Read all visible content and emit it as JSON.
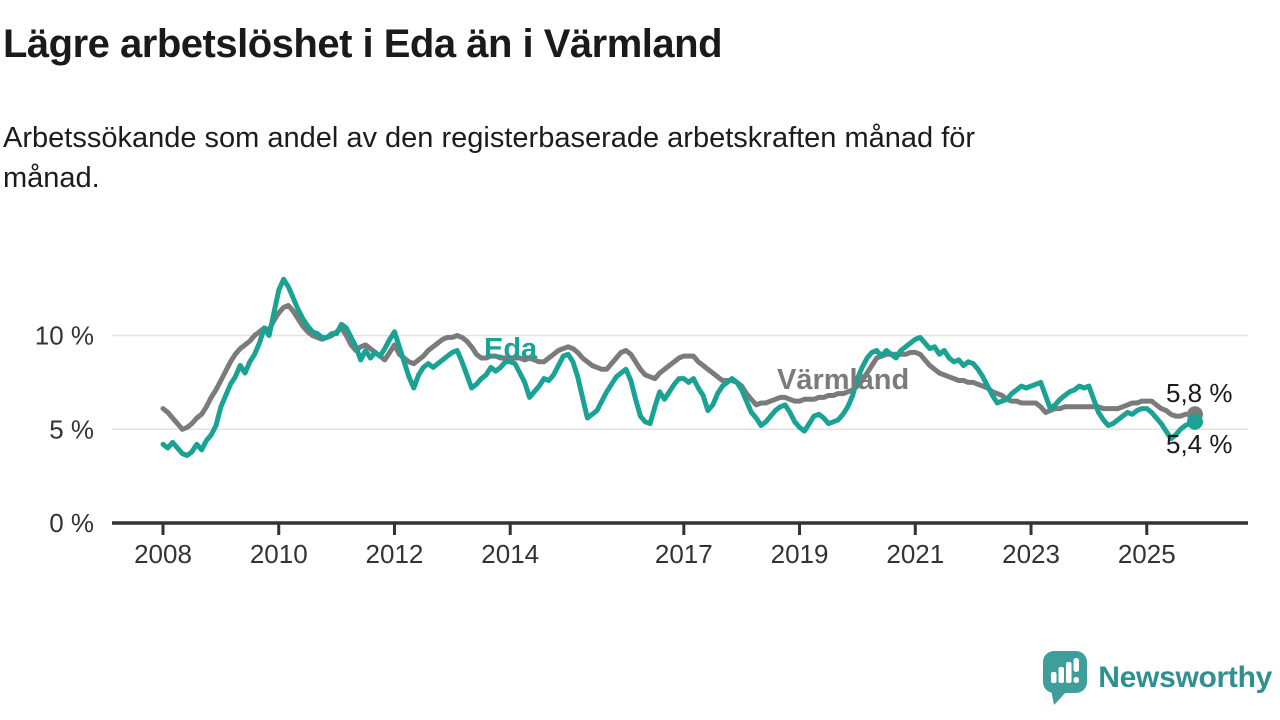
{
  "header": {
    "title": "Lägre arbetslöshet i Eda än i Värmland",
    "subtitle_lines": [
      "Arbetssökande som andel av den registerbaserade arbetskraften månad för",
      "månad."
    ]
  },
  "chart_data": {
    "type": "line",
    "unit": "%",
    "frequency": "monthly",
    "x_start": {
      "year": 2008,
      "month": 1
    },
    "x_end": {
      "year": 2025,
      "month": 11
    },
    "grid": "horizontal-only",
    "legend_position": "inline-labels-on-lines",
    "y_axis": {
      "range": [
        0,
        13.5
      ],
      "ticks": [
        {
          "value": 0,
          "label": "0 %"
        },
        {
          "value": 5,
          "label": "5 %"
        },
        {
          "value": 10,
          "label": "10 %"
        }
      ]
    },
    "x_axis": {
      "tick_years": [
        2008,
        2010,
        2012,
        2014,
        2017,
        2019,
        2021,
        2023,
        2025
      ]
    },
    "series": [
      {
        "name": "Värmland",
        "label": "Värmland",
        "color": "#7b7b7b",
        "end_label": "5,8 %",
        "end_value": 5.8,
        "values": [
          6.1,
          5.9,
          5.6,
          5.3,
          5.0,
          5.1,
          5.3,
          5.6,
          5.8,
          6.2,
          6.7,
          7.1,
          7.6,
          8.1,
          8.6,
          9.0,
          9.3,
          9.5,
          9.7,
          10.0,
          10.2,
          10.4,
          10.3,
          10.8,
          11.2,
          11.5,
          11.6,
          11.3,
          10.9,
          10.5,
          10.2,
          10.0,
          9.9,
          9.8,
          9.9,
          10.0,
          10.2,
          10.4,
          10.0,
          9.5,
          9.2,
          9.4,
          9.5,
          9.3,
          9.1,
          8.9,
          8.7,
          9.1,
          9.5,
          9.0,
          8.8,
          8.6,
          8.5,
          8.7,
          8.9,
          9.2,
          9.4,
          9.6,
          9.8,
          9.9,
          9.9,
          10.0,
          9.9,
          9.7,
          9.4,
          9.0,
          8.8,
          8.8,
          8.9,
          8.9,
          8.8,
          8.8,
          8.8,
          8.8,
          8.8,
          8.7,
          8.8,
          8.7,
          8.6,
          8.6,
          8.8,
          9.0,
          9.2,
          9.3,
          9.4,
          9.3,
          9.1,
          8.8,
          8.6,
          8.4,
          8.3,
          8.2,
          8.2,
          8.5,
          8.8,
          9.1,
          9.2,
          9.0,
          8.6,
          8.2,
          7.9,
          7.8,
          7.7,
          8.0,
          8.2,
          8.4,
          8.6,
          8.8,
          8.9,
          8.9,
          8.9,
          8.6,
          8.4,
          8.2,
          8.0,
          7.8,
          7.6,
          7.6,
          7.6,
          7.5,
          7.3,
          6.9,
          6.6,
          6.3,
          6.4,
          6.4,
          6.5,
          6.6,
          6.7,
          6.7,
          6.6,
          6.5,
          6.5,
          6.6,
          6.6,
          6.6,
          6.7,
          6.7,
          6.8,
          6.8,
          6.9,
          6.9,
          7.0,
          7.1,
          7.3,
          7.6,
          8.0,
          8.4,
          8.8,
          8.9,
          9.0,
          9.0,
          9.0,
          9.0,
          9.0,
          9.1,
          9.1,
          9.0,
          8.7,
          8.4,
          8.2,
          8.0,
          7.9,
          7.8,
          7.7,
          7.6,
          7.6,
          7.5,
          7.5,
          7.4,
          7.3,
          7.2,
          7.0,
          6.9,
          6.8,
          6.6,
          6.5,
          6.5,
          6.4,
          6.4,
          6.4,
          6.4,
          6.2,
          5.9,
          6.0,
          6.1,
          6.1,
          6.2,
          6.2,
          6.2,
          6.2,
          6.2,
          6.2,
          6.2,
          6.2,
          6.1,
          6.1,
          6.1,
          6.1,
          6.2,
          6.3,
          6.4,
          6.4,
          6.5,
          6.5,
          6.5,
          6.3,
          6.1,
          6.0,
          5.8,
          5.7,
          5.7,
          5.8,
          5.8,
          5.8
        ]
      },
      {
        "name": "Eda",
        "label": "Eda",
        "color": "#1aa294",
        "end_label": "5,4 %",
        "end_value": 5.4,
        "values": [
          4.2,
          4.0,
          4.3,
          4.0,
          3.7,
          3.6,
          3.8,
          4.2,
          3.9,
          4.4,
          4.7,
          5.2,
          6.2,
          6.8,
          7.4,
          7.8,
          8.4,
          8.0,
          8.6,
          9.0,
          9.6,
          10.4,
          10.0,
          11.2,
          12.4,
          13.0,
          12.6,
          12.0,
          11.4,
          10.9,
          10.5,
          10.2,
          10.1,
          9.9,
          9.9,
          10.1,
          10.1,
          10.6,
          10.4,
          9.9,
          9.4,
          8.7,
          9.2,
          8.8,
          9.1,
          8.9,
          9.3,
          9.8,
          10.2,
          9.4,
          8.6,
          7.8,
          7.2,
          7.9,
          8.3,
          8.5,
          8.3,
          8.5,
          8.7,
          8.9,
          9.1,
          9.2,
          8.6,
          7.9,
          7.2,
          7.4,
          7.7,
          7.9,
          8.3,
          8.1,
          8.3,
          8.6,
          8.6,
          8.5,
          8.0,
          7.5,
          6.7,
          7.0,
          7.3,
          7.7,
          7.6,
          7.9,
          8.4,
          8.9,
          9.0,
          8.6,
          7.8,
          6.7,
          5.6,
          5.8,
          6.0,
          6.5,
          7.0,
          7.4,
          7.8,
          8.0,
          8.2,
          7.6,
          6.6,
          5.7,
          5.4,
          5.3,
          6.2,
          7.0,
          6.6,
          7.0,
          7.4,
          7.7,
          7.7,
          7.5,
          7.7,
          7.2,
          6.8,
          6.0,
          6.3,
          6.9,
          7.3,
          7.5,
          7.7,
          7.5,
          7.1,
          6.5,
          5.9,
          5.6,
          5.2,
          5.4,
          5.7,
          6.0,
          6.2,
          6.3,
          5.9,
          5.4,
          5.1,
          4.9,
          5.3,
          5.7,
          5.8,
          5.6,
          5.3,
          5.4,
          5.5,
          5.8,
          6.2,
          6.8,
          7.7,
          8.3,
          8.8,
          9.1,
          9.2,
          8.9,
          9.2,
          9.0,
          8.8,
          9.2,
          9.4,
          9.6,
          9.8,
          9.9,
          9.6,
          9.3,
          9.4,
          9.0,
          9.2,
          8.8,
          8.6,
          8.7,
          8.4,
          8.6,
          8.5,
          8.2,
          7.8,
          7.3,
          6.8,
          6.4,
          6.5,
          6.6,
          6.9,
          7.1,
          7.3,
          7.2,
          7.3,
          7.4,
          7.5,
          6.8,
          6.1,
          6.3,
          6.6,
          6.8,
          7.0,
          7.1,
          7.3,
          7.2,
          7.3,
          6.6,
          5.9,
          5.5,
          5.2,
          5.3,
          5.5,
          5.7,
          5.9,
          5.8,
          6.0,
          6.1,
          6.1,
          5.9,
          5.6,
          5.3,
          4.9,
          4.5,
          4.7,
          5.0,
          5.2,
          5.3,
          5.4
        ]
      }
    ]
  },
  "footer": {
    "brand": "Newsworthy"
  },
  "colors": {
    "eda_teal": "#1aa294",
    "varmland_gray": "#7b7b7b",
    "axis": "#333333",
    "gridline": "#e2e2e2",
    "text": "#1a1a1a",
    "brand_teal": "#2e918e",
    "logo_bubble": "#3f9e9a"
  }
}
